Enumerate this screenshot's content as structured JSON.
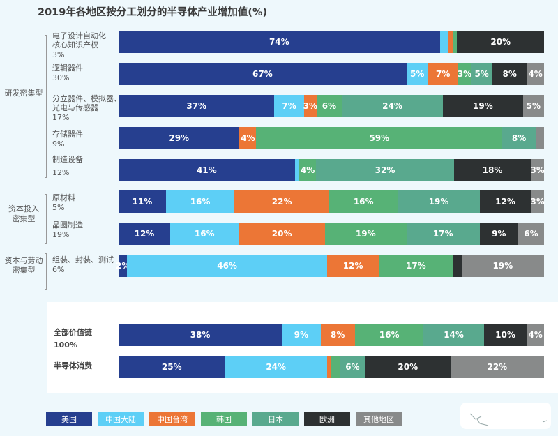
{
  "chart_data": {
    "type": "bar",
    "orientation": "horizontal",
    "stacked": true,
    "normalized": true,
    "title": "2019年各地区按分工划分的半导体产业增加值(%)",
    "xlabel": "",
    "ylabel": "",
    "legend_position": "bottom-left",
    "series_names": [
      "美国",
      "中国大陆",
      "中国台湾",
      "韩国",
      "日本",
      "欧洲",
      "其他地区"
    ],
    "colors": [
      "#263f8f",
      "#5dcff6",
      "#ec7636",
      "#57b276",
      "#59a98e",
      "#2d3132",
      "#888a8a"
    ],
    "groups": [
      {
        "label": "研发密集型",
        "rows": [
          0,
          1,
          2,
          3,
          4
        ]
      },
      {
        "label": "资本投入\n密集型",
        "rows": [
          5,
          6
        ]
      },
      {
        "label": "资本与劳动\n密集型",
        "rows": [
          7
        ]
      }
    ],
    "rows": [
      {
        "label": "电子设计自动化核心知识产权",
        "label_lines": [
          "电子设计自动化",
          "核心知识产权"
        ],
        "share": "3%",
        "values": [
          74,
          2,
          1,
          1,
          0,
          20,
          0
        ],
        "labels": [
          "74%",
          "",
          "",
          "",
          "",
          "20%",
          ""
        ]
      },
      {
        "label": "逻辑器件",
        "label_lines": [
          "逻辑器件"
        ],
        "share": "30%",
        "values": [
          67,
          5,
          7,
          3,
          5,
          8,
          4
        ],
        "labels": [
          "67%",
          "5%",
          "7%",
          "3%",
          "5%",
          "8%",
          "4%"
        ]
      },
      {
        "label": "分立器件、模拟器、光电与传感器",
        "label_lines": [
          "分立器件、模拟器、",
          "光电与传感器"
        ],
        "share": "17%",
        "values": [
          37,
          7,
          3,
          6,
          24,
          19,
          5
        ],
        "labels": [
          "37%",
          "7%",
          "3%",
          "6%",
          "24%",
          "19%",
          "5%"
        ]
      },
      {
        "label": "存储器件",
        "label_lines": [
          "存储器件"
        ],
        "share": "9%",
        "values": [
          29,
          0,
          4,
          59,
          8,
          0,
          2
        ],
        "labels": [
          "29%",
          "",
          "4%",
          "59%",
          "8%",
          "",
          ""
        ]
      },
      {
        "label": "制造设备",
        "label_lines": [
          "制造设备"
        ],
        "share": "12%",
        "values": [
          41,
          1,
          0,
          4,
          32,
          18,
          3
        ],
        "labels": [
          "41%",
          "",
          "",
          "4%",
          "32%",
          "18%",
          "3%"
        ]
      },
      {
        "label": "原材料",
        "label_lines": [
          "原材料"
        ],
        "share": "5%",
        "values": [
          11,
          16,
          22,
          16,
          19,
          12,
          3
        ],
        "labels": [
          "11%",
          "16%",
          "22%",
          "16%",
          "19%",
          "12%",
          "3%"
        ]
      },
      {
        "label": "晶圆制造",
        "label_lines": [
          "晶圆制造"
        ],
        "share": "19%",
        "values": [
          12,
          16,
          20,
          19,
          17,
          9,
          6
        ],
        "labels": [
          "12%",
          "16%",
          "20%",
          "19%",
          "17%",
          "9%",
          "6%"
        ]
      },
      {
        "label": "组装、封装、测试",
        "label_lines": [
          "组装、封装、测试"
        ],
        "share": "6%",
        "values": [
          2,
          46,
          12,
          17,
          0,
          2,
          19
        ],
        "labels": [
          "2%",
          "46%",
          "12%",
          "17%",
          "",
          "",
          "19%"
        ]
      },
      {
        "label": "全部价值链",
        "label_lines": [
          "全部价值链"
        ],
        "share": "100%",
        "values": [
          38,
          9,
          8,
          16,
          14,
          10,
          4
        ],
        "labels": [
          "38%",
          "9%",
          "8%",
          "16%",
          "14%",
          "10%",
          "4%"
        ]
      },
      {
        "label": "半导体消费",
        "label_lines": [
          "半导体消费"
        ],
        "share": "",
        "values": [
          25,
          24,
          1,
          2,
          6,
          20,
          22
        ],
        "labels": [
          "25%",
          "24%",
          "",
          "",
          "6%",
          "20%",
          "22%"
        ]
      }
    ]
  },
  "title": "2019年各地区按分工划分的半导体产业增加值(%)",
  "groups": {
    "rd": [
      "研发密集型"
    ],
    "capital": [
      "资本投入",
      "密集型"
    ],
    "labor": [
      "资本与劳动",
      "密集型"
    ]
  },
  "legend": [
    "美国",
    "中国大陆",
    "中国台湾",
    "韩国",
    "日本",
    "欧洲",
    "其他地区"
  ]
}
